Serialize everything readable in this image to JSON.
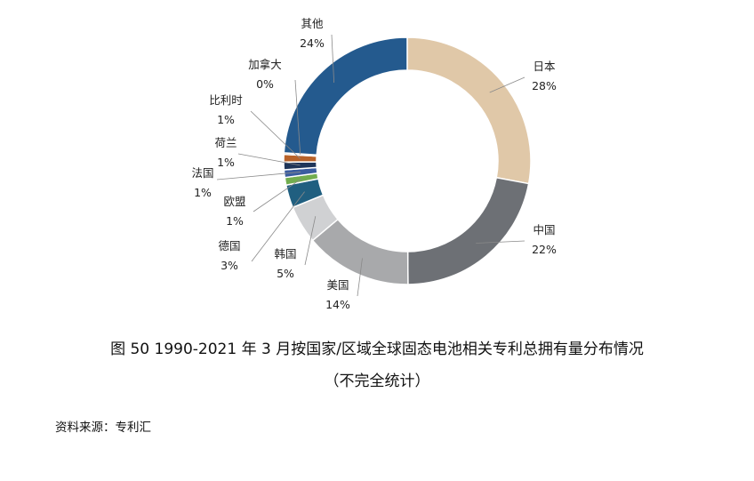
{
  "caption": {
    "line1": "图  50 1990-2021 年 3 月按国家/区域全球固态电池相关专利总拥有量分布情况",
    "line2": "（不完全统计）"
  },
  "source": "资料来源：专利汇",
  "chart_data": {
    "type": "pie",
    "variant": "donut",
    "title": "",
    "slices": [
      {
        "name": "日本",
        "value": 28,
        "label": "28%",
        "color": "#e0c8a8"
      },
      {
        "name": "中国",
        "value": 22,
        "label": "22%",
        "color": "#6d7075"
      },
      {
        "name": "美国",
        "value": 14,
        "label": "14%",
        "color": "#a8a9ab"
      },
      {
        "name": "韩国",
        "value": 5,
        "label": "5%",
        "color": "#d0d1d3"
      },
      {
        "name": "德国",
        "value": 3,
        "label": "3%",
        "color": "#205f80"
      },
      {
        "name": "欧盟",
        "value": 1,
        "label": "1%",
        "color": "#72ad4f"
      },
      {
        "name": "法国",
        "value": 1,
        "label": "1%",
        "color": "#3b5da0"
      },
      {
        "name": "荷兰",
        "value": 1,
        "label": "1%",
        "color": "#1f3559"
      },
      {
        "name": "比利时",
        "value": 1,
        "label": "1%",
        "color": "#b8632a"
      },
      {
        "name": "加拿大",
        "value": 0.2,
        "label": "0%",
        "color": "#a09070"
      },
      {
        "name": "其他",
        "value": 24,
        "label": "24%",
        "color": "#245a8e"
      }
    ],
    "legend": "none"
  }
}
